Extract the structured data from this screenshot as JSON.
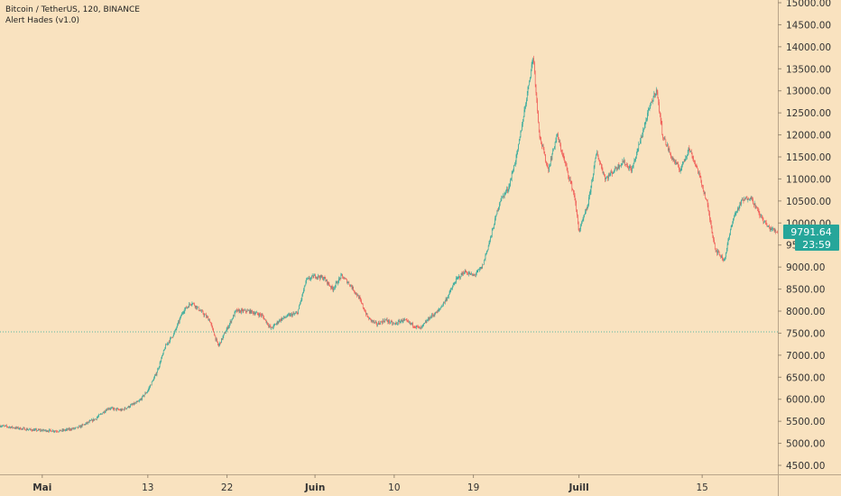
{
  "legend": {
    "symbol_line": "Bitcoin / TetherUS, 120, BINANCE",
    "indicator_line": "Alert Hades (v1.0)"
  },
  "price_tag": {
    "price": "9791.64",
    "countdown": "23:59"
  },
  "colors": {
    "background": "#f9e2bf",
    "up": "#26a69a",
    "down": "#ef5350",
    "tag": "#26a69a",
    "level_line": "#26a69a"
  },
  "chart_data": {
    "type": "candlestick",
    "title": "",
    "xlabel": "",
    "ylabel": "",
    "ylim": [
      4300,
      15000
    ],
    "y_ticks": [
      "4500.00",
      "5000.00",
      "5500.00",
      "6000.00",
      "6500.00",
      "7000.00",
      "7500.00",
      "8000.00",
      "8500.00",
      "9000.00",
      "9500.00",
      "10000.00",
      "10500.00",
      "11000.00",
      "11500.00",
      "12000.00",
      "12500.00",
      "13000.00",
      "13500.00",
      "14000.00",
      "14500.00",
      "15000.00"
    ],
    "x_ticks": [
      {
        "label": "Mai",
        "month": true,
        "day": 1
      },
      {
        "label": "13",
        "month": false,
        "day": 13
      },
      {
        "label": "22",
        "month": false,
        "day": 22
      },
      {
        "label": "Juin",
        "month": true,
        "day": 32
      },
      {
        "label": "10",
        "month": false,
        "day": 41
      },
      {
        "label": "19",
        "month": false,
        "day": 50
      },
      {
        "label": "Juill",
        "month": true,
        "day": 62
      },
      {
        "label": "15",
        "month": false,
        "day": 76
      }
    ],
    "x_range_days": [
      -3.8,
      84.6
    ],
    "level_line": 7530,
    "price_path": [
      [
        -3.8,
        5400
      ],
      [
        -2,
        5350
      ],
      [
        0,
        5300
      ],
      [
        3,
        5280
      ],
      [
        5,
        5350
      ],
      [
        7,
        5550
      ],
      [
        8.5,
        5800
      ],
      [
        10,
        5750
      ],
      [
        12,
        5950
      ],
      [
        13,
        6200
      ],
      [
        14,
        6600
      ],
      [
        15,
        7200
      ],
      [
        16,
        7500
      ],
      [
        17,
        8000
      ],
      [
        18,
        8200
      ],
      [
        19,
        8000
      ],
      [
        20,
        7800
      ],
      [
        21,
        7200
      ],
      [
        22,
        7600
      ],
      [
        23,
        8000
      ],
      [
        24.5,
        8000
      ],
      [
        26,
        7900
      ],
      [
        27,
        7600
      ],
      [
        28,
        7800
      ],
      [
        29,
        7900
      ],
      [
        30,
        7950
      ],
      [
        31,
        8700
      ],
      [
        32,
        8800
      ],
      [
        33,
        8750
      ],
      [
        34,
        8500
      ],
      [
        35,
        8800
      ],
      [
        36,
        8600
      ],
      [
        37,
        8300
      ],
      [
        38,
        7850
      ],
      [
        39,
        7700
      ],
      [
        40,
        7800
      ],
      [
        41,
        7700
      ],
      [
        42,
        7800
      ],
      [
        43,
        7700
      ],
      [
        44,
        7600
      ],
      [
        45,
        7850
      ],
      [
        46,
        8000
      ],
      [
        47,
        8300
      ],
      [
        48,
        8700
      ],
      [
        49,
        8900
      ],
      [
        50,
        8800
      ],
      [
        51,
        9000
      ],
      [
        52,
        9700
      ],
      [
        53,
        10500
      ],
      [
        54,
        10800
      ],
      [
        55,
        11600
      ],
      [
        56,
        12800
      ],
      [
        56.8,
        13800
      ],
      [
        57.5,
        12000
      ],
      [
        58.5,
        11200
      ],
      [
        59.5,
        12000
      ],
      [
        60.5,
        11300
      ],
      [
        61.5,
        10600
      ],
      [
        62,
        9800
      ],
      [
        63,
        10400
      ],
      [
        64,
        11600
      ],
      [
        65,
        11000
      ],
      [
        66,
        11200
      ],
      [
        67,
        11400
      ],
      [
        68,
        11200
      ],
      [
        69,
        11900
      ],
      [
        70,
        12600
      ],
      [
        70.8,
        13050
      ],
      [
        71.5,
        12000
      ],
      [
        72.5,
        11500
      ],
      [
        73.5,
        11200
      ],
      [
        74.5,
        11700
      ],
      [
        75.5,
        11200
      ],
      [
        76.5,
        10500
      ],
      [
        77.5,
        9400
      ],
      [
        78.5,
        9150
      ],
      [
        79.5,
        10100
      ],
      [
        80.5,
        10500
      ],
      [
        81.5,
        10600
      ],
      [
        82.5,
        10200
      ],
      [
        83.5,
        9900
      ],
      [
        84.6,
        9791.64
      ]
    ]
  }
}
